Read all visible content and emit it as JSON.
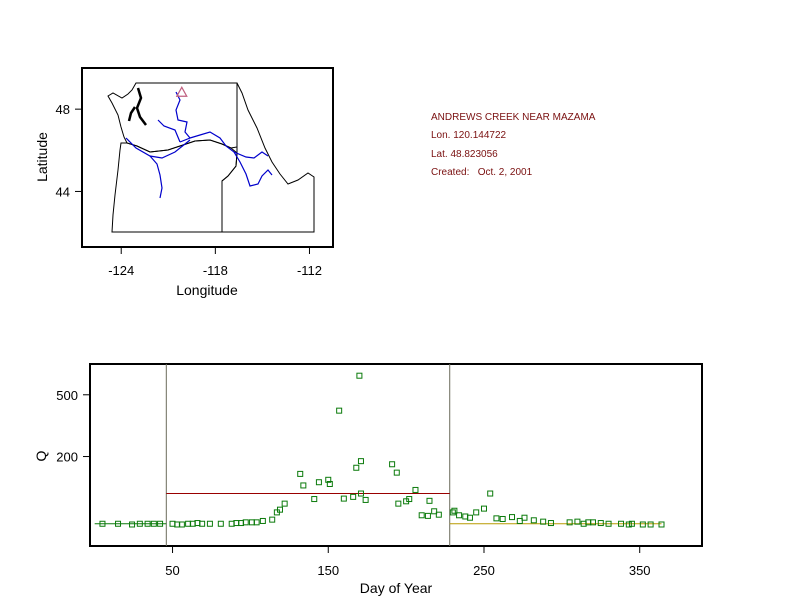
{
  "station": {
    "name": "ANDREWS CREEK NEAR MAZAMA",
    "lon": "Lon. 120.144722",
    "lat": "Lat. 48.823056",
    "created": "Created:   Oct. 2, 2001"
  },
  "chart_data": [
    {
      "type": "map",
      "xlabel": "Longitude",
      "ylabel": "Latitude",
      "xlim": [
        -126.5,
        -110.5
      ],
      "ylim": [
        41.3,
        50.0
      ],
      "xticks": [
        -124,
        -118,
        -112
      ],
      "xtick_labels": [
        "-124",
        "-118",
        "-112"
      ],
      "yticks": [
        44,
        48
      ],
      "ytick_labels": [
        "44",
        "48"
      ],
      "station_marker": {
        "lon": -120.14,
        "lat": 48.82,
        "shape": "triangle",
        "color": "#c06080"
      },
      "boundary_color": "#000000",
      "river_color": "#0000cc"
    },
    {
      "type": "scatter",
      "xlabel": "Day of Year",
      "ylabel": "Q",
      "xlim": [
        -3,
        390
      ],
      "y_ticks_data": [
        200,
        500
      ],
      "ytick_labels": [
        "200",
        "500"
      ],
      "xticks": [
        50,
        150,
        250,
        350
      ],
      "xtick_labels": [
        "50",
        "150",
        "250",
        "350"
      ],
      "y_scale": "sqrt",
      "ylim": [
        5,
        700
      ],
      "vertical_lines": [
        46,
        228
      ],
      "vline_color": "#6b6b5b",
      "marker_color": "#0a7a0a",
      "segments": [
        {
          "x": [
            0,
            46
          ],
          "y": [
            27,
            27
          ],
          "color": "#0a7a0a"
        },
        {
          "x": [
            46,
            228
          ],
          "y": [
            85,
            85
          ],
          "color": "#990000"
        },
        {
          "x": [
            228,
            364
          ],
          "y": [
            27,
            27
          ],
          "color": "#b89a00"
        }
      ],
      "points": [
        [
          5,
          27
        ],
        [
          15,
          27
        ],
        [
          24,
          26
        ],
        [
          29,
          27
        ],
        [
          34,
          27
        ],
        [
          38,
          27
        ],
        [
          42,
          27
        ],
        [
          50,
          27
        ],
        [
          53,
          26
        ],
        [
          56,
          26
        ],
        [
          60,
          27
        ],
        [
          63,
          27
        ],
        [
          66,
          28
        ],
        [
          69,
          27
        ],
        [
          74,
          27
        ],
        [
          81,
          27
        ],
        [
          88,
          27
        ],
        [
          91,
          28
        ],
        [
          94,
          28
        ],
        [
          97,
          29
        ],
        [
          101,
          29
        ],
        [
          104,
          29
        ],
        [
          108,
          31
        ],
        [
          114,
          33
        ],
        [
          117,
          45
        ],
        [
          119,
          50
        ],
        [
          122,
          62
        ],
        [
          132,
          140
        ],
        [
          134,
          106
        ],
        [
          141,
          72
        ],
        [
          144,
          115
        ],
        [
          150,
          122
        ],
        [
          151,
          110
        ],
        [
          157,
          410
        ],
        [
          160,
          73
        ],
        [
          166,
          77
        ],
        [
          168,
          160
        ],
        [
          170,
          620
        ],
        [
          171,
          183
        ],
        [
          171,
          85
        ],
        [
          174,
          70
        ],
        [
          191,
          172
        ],
        [
          194,
          144
        ],
        [
          195,
          62
        ],
        [
          200,
          67
        ],
        [
          202,
          72
        ],
        [
          206,
          94
        ],
        [
          210,
          40
        ],
        [
          214,
          39
        ],
        [
          215,
          68
        ],
        [
          218,
          47
        ],
        [
          221,
          41
        ],
        [
          230,
          45
        ],
        [
          231,
          48
        ],
        [
          234,
          40
        ],
        [
          238,
          38
        ],
        [
          241,
          36
        ],
        [
          245,
          45
        ],
        [
          250,
          52
        ],
        [
          254,
          85
        ],
        [
          258,
          35
        ],
        [
          262,
          34
        ],
        [
          268,
          37
        ],
        [
          273,
          31
        ],
        [
          276,
          36
        ],
        [
          282,
          32
        ],
        [
          288,
          30
        ],
        [
          293,
          28
        ],
        [
          305,
          29
        ],
        [
          310,
          30
        ],
        [
          314,
          27
        ],
        [
          317,
          29
        ],
        [
          320,
          29
        ],
        [
          325,
          28
        ],
        [
          330,
          27
        ],
        [
          338,
          27
        ],
        [
          343,
          26
        ],
        [
          345,
          27
        ],
        [
          352,
          26
        ],
        [
          357,
          26
        ],
        [
          364,
          26
        ]
      ]
    }
  ]
}
